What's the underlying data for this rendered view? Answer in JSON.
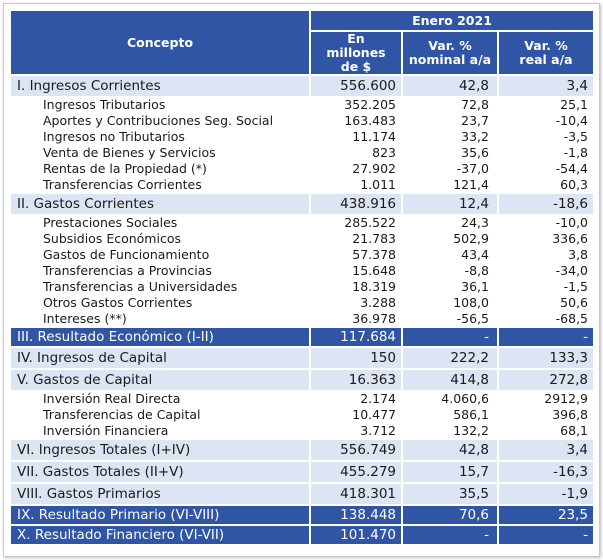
{
  "header": {
    "concept": "Concepto",
    "period": "Enero 2021",
    "col1": "En millones de $",
    "col2": "Var. % nominal a/a",
    "col3": "Var. % real a/a"
  },
  "rows": [
    {
      "type": "group",
      "label": "I. Ingresos Corrientes",
      "v1": "556.600",
      "v2": "42,8",
      "v3": "3,4"
    },
    {
      "type": "sub",
      "label": "Ingresos Tributarios",
      "v1": "352.205",
      "v2": "72,8",
      "v3": "25,1"
    },
    {
      "type": "sub",
      "label": "Aportes y Contribuciones Seg. Social",
      "v1": "163.483",
      "v2": "23,7",
      "v3": "-10,4"
    },
    {
      "type": "sub",
      "label": "Ingresos no Tributarios",
      "v1": "11.174",
      "v2": "33,2",
      "v3": "-3,5"
    },
    {
      "type": "sub",
      "label": "Venta de Bienes y Servicios",
      "v1": "823",
      "v2": "35,6",
      "v3": "-1,8"
    },
    {
      "type": "sub",
      "label": "Rentas de la Propiedad (*)",
      "v1": "27.902",
      "v2": "-37,0",
      "v3": "-54,4"
    },
    {
      "type": "sub",
      "label": "Transferencias Corrientes",
      "v1": "1.011",
      "v2": "121,4",
      "v3": "60,3"
    },
    {
      "type": "group",
      "label": "II. Gastos Corrientes",
      "v1": "438.916",
      "v2": "12,4",
      "v3": "-18,6"
    },
    {
      "type": "sub",
      "label": "Prestaciones Sociales",
      "v1": "285.522",
      "v2": "24,3",
      "v3": "-10,0"
    },
    {
      "type": "sub",
      "label": "Subsidios Económicos",
      "v1": "21.783",
      "v2": "502,9",
      "v3": "336,6"
    },
    {
      "type": "sub",
      "label": "Gastos de Funcionamiento",
      "v1": "57.378",
      "v2": "43,4",
      "v3": "3,8"
    },
    {
      "type": "sub",
      "label": "Transferencias a Provincias",
      "v1": "15.648",
      "v2": "-8,8",
      "v3": "-34,0"
    },
    {
      "type": "sub",
      "label": "Transferencias a Universidades",
      "v1": "18.319",
      "v2": "36,1",
      "v3": "-1,5"
    },
    {
      "type": "sub",
      "label": "Otros Gastos Corrientes",
      "v1": "3.288",
      "v2": "108,0",
      "v3": "50,6"
    },
    {
      "type": "sub",
      "label": "Intereses (**)",
      "v1": "36.978",
      "v2": "-56,5",
      "v3": "-68,5"
    },
    {
      "type": "dark",
      "label": "III. Resultado Económico (I-II)",
      "v1": "117.684",
      "v2": "-",
      "v3": "-"
    },
    {
      "type": "group",
      "label": "IV. Ingresos de Capital",
      "v1": "150",
      "v2": "222,2",
      "v3": "133,3"
    },
    {
      "type": "group",
      "label": "V. Gastos de Capital",
      "v1": "16.363",
      "v2": "414,8",
      "v3": "272,8"
    },
    {
      "type": "sub",
      "label": "Inversión Real Directa",
      "v1": "2.174",
      "v2": "4.060,6",
      "v3": "2912,9"
    },
    {
      "type": "sub",
      "label": "Transferencias de Capital",
      "v1": "10.477",
      "v2": "586,1",
      "v3": "396,8"
    },
    {
      "type": "sub",
      "label": "Inversión Financiera",
      "v1": "3.712",
      "v2": "132,2",
      "v3": "68,1"
    },
    {
      "type": "group",
      "label": "VI. Ingresos Totales (I+IV)",
      "v1": "556.749",
      "v2": "42,8",
      "v3": "3,4"
    },
    {
      "type": "group",
      "label": "VII. Gastos Totales (II+V)",
      "v1": "455.279",
      "v2": "15,7",
      "v3": "-16,3"
    },
    {
      "type": "group",
      "label": "VIII. Gastos Primarios",
      "v1": "418.301",
      "v2": "35,5",
      "v3": "-1,9"
    },
    {
      "type": "dark",
      "label": "IX. Resultado Primario (VI-VIII)",
      "v1": "138.448",
      "v2": "70,6",
      "v3": "23,5"
    },
    {
      "type": "dark",
      "label": "X. Resultado Financiero (VI-VII)",
      "v1": "101.470",
      "v2": "-",
      "v3": "-"
    }
  ]
}
